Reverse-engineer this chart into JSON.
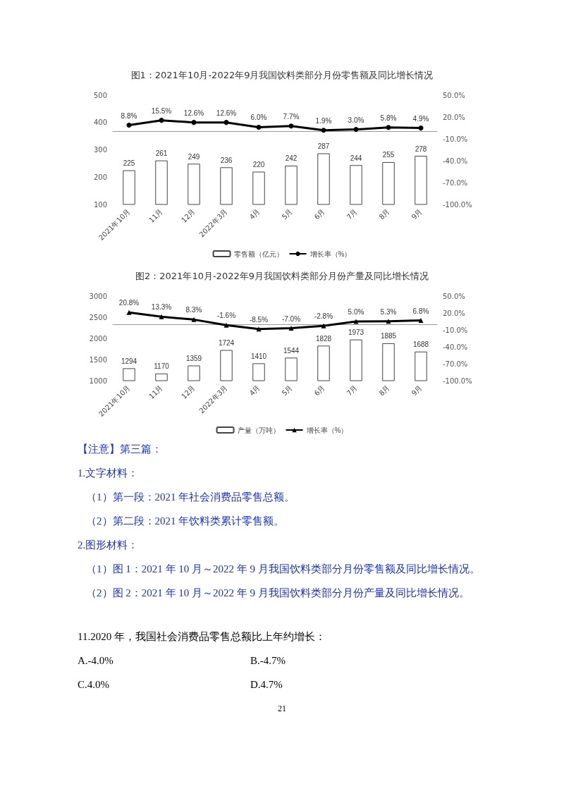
{
  "chart_data": [
    {
      "type": "bar",
      "title": "图1：2021年10月-2022年9月我国饮料类部分月份零售额及同比增长情况",
      "categories": [
        "2021年10月",
        "11月",
        "12月",
        "2022年3月",
        "4月",
        "5月",
        "6月",
        "7月",
        "8月",
        "9月"
      ],
      "series": [
        {
          "name": "零售额（亿元）",
          "type": "bar",
          "color": "#ffffff",
          "values": [
            225,
            261,
            249,
            236,
            220,
            242,
            287,
            244,
            255,
            278
          ],
          "value_labels": [
            "225",
            "261",
            "249",
            "236",
            "220",
            "242",
            "287",
            "244",
            "255",
            "278"
          ]
        },
        {
          "name": "增长率（%）",
          "type": "line",
          "axis": "y2",
          "color": "#000000",
          "values": [
            8.8,
            15.5,
            12.6,
            12.6,
            6.0,
            7.7,
            1.9,
            3.0,
            5.8,
            4.9
          ],
          "value_labels": [
            "8.8%",
            "15.5%",
            "12.6%",
            "12.6%",
            "6.0%",
            "7.7%",
            "1.9%",
            "3.0%",
            "5.8%",
            "4.9%"
          ]
        }
      ],
      "ylim": [
        100,
        500
      ],
      "yticks": [
        100,
        200,
        300,
        400,
        500
      ],
      "y2lim": [
        -100,
        50
      ],
      "y2ticks": [
        {
          "value": -100,
          "label": "-100.0%"
        },
        {
          "value": -70,
          "label": "-70.0%"
        },
        {
          "value": -40,
          "label": "-40.0%"
        },
        {
          "value": -10,
          "label": "-10.0%"
        },
        {
          "value": 20,
          "label": "20.0%"
        },
        {
          "value": 50,
          "label": "50.0%"
        }
      ],
      "marker": "circle",
      "legend": "bottom"
    },
    {
      "type": "bar",
      "title": "图2：2021年10月-2022年9月我国饮料类部分月份产量及同比增长情况",
      "categories": [
        "2021年10月",
        "11月",
        "12月",
        "2022年3月",
        "4月",
        "5月",
        "6月",
        "7月",
        "8月",
        "9月"
      ],
      "series": [
        {
          "name": "产量（万吨）",
          "type": "bar",
          "color": "#ffffff",
          "values": [
            1294,
            1170,
            1359,
            1724,
            1410,
            1544,
            1828,
            1973,
            1885,
            1688
          ],
          "value_labels": [
            "1294",
            "1170",
            "1359",
            "1724",
            "1410",
            "1544",
            "1828",
            "1973",
            "1885",
            "1688"
          ]
        },
        {
          "name": "增长率（%）",
          "type": "line",
          "axis": "y2",
          "color": "#000000",
          "values": [
            20.8,
            13.3,
            8.3,
            -1.6,
            -8.5,
            -7.0,
            -2.8,
            5.0,
            5.3,
            6.8
          ],
          "value_labels": [
            "20.8%",
            "13.3%",
            "8.3%",
            "-1.6%",
            "-8.5%",
            "-7.0%",
            "-2.8%",
            "5.0%",
            "5.3%",
            "6.8%"
          ]
        }
      ],
      "ylim": [
        1000,
        3000
      ],
      "yticks": [
        1000,
        1500,
        2000,
        2500,
        3000
      ],
      "y2lim": [
        -100,
        50
      ],
      "y2ticks": [
        {
          "value": -100,
          "label": "-100.0%"
        },
        {
          "value": -70,
          "label": "-70.0%"
        },
        {
          "value": -40,
          "label": "-40.0%"
        },
        {
          "value": -10,
          "label": "-10.0%"
        },
        {
          "value": 20,
          "label": "20.0%"
        },
        {
          "value": 50,
          "label": "50.0%"
        }
      ],
      "marker": "triangle",
      "legend": "bottom"
    },
    {
      "type": "other",
      "annotations": [
        "【注意】第三篇：",
        "1.文字材料：",
        "（1）第一段：2021 年社会消费品零售总额。",
        "（2）第二段：2021 年饮料类累计零售额。",
        "2.图形材料：",
        "（1）图 1：2021 年 10 月～2022 年 9 月我国饮料类部分月份零售额及同比增长情况。",
        "（2）图 2：2021 年 10 月～2022 年 9 月我国饮料类部分月份产量及同比增长情况。",
        "11.2020 年，我国社会消费品零售总额比上年约增长：",
        "A.-4.0%",
        "B.-4.7%",
        "C.4.0%",
        "D.4.7%",
        "21"
      ]
    }
  ]
}
